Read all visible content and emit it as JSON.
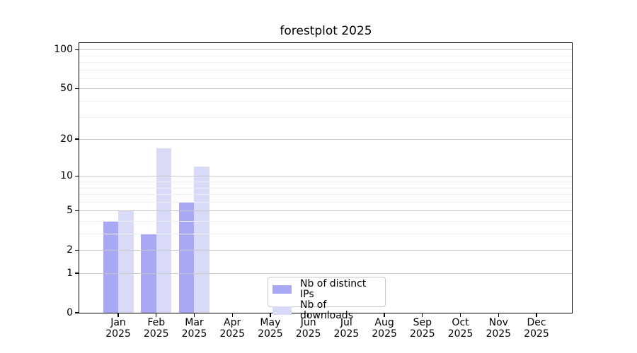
{
  "title": "forestplot 2025",
  "colors": {
    "bar_distinct_ips": "#a8a8f4",
    "bar_downloads": "#d9d9f8",
    "grid_major": "#c8c8c8",
    "grid_minor": "#f0f0f0",
    "spine": "#000000",
    "legend_border": "#c8c8c8",
    "background": "#ffffff",
    "text": "#000000"
  },
  "chart_data": {
    "type": "bar",
    "title": "forestplot 2025",
    "x_months": [
      "Jan",
      "Feb",
      "Mar",
      "Apr",
      "May",
      "Jun",
      "Jul",
      "Aug",
      "Sep",
      "Oct",
      "Nov",
      "Dec"
    ],
    "x_year": "2025",
    "series": [
      {
        "name": "Nb of distinct IPs",
        "color": "#a8a8f4",
        "values": [
          4,
          3,
          6,
          0,
          0,
          0,
          0,
          0,
          0,
          0,
          0,
          0
        ]
      },
      {
        "name": "Nb of downloads",
        "color": "#d9d9f8",
        "values": [
          5,
          17,
          12,
          0,
          0,
          0,
          0,
          0,
          0,
          0,
          0,
          0
        ]
      }
    ],
    "yscale": "log1p",
    "y_major_ticks": [
      100,
      50,
      20,
      10,
      5,
      2,
      1,
      0
    ],
    "y_minor_ticks": [
      90,
      80,
      70,
      60,
      40,
      30,
      9,
      8,
      7,
      6,
      4,
      3
    ],
    "ylim": [
      0,
      112
    ],
    "xlabel": "",
    "ylabel": "",
    "grid": true,
    "legend_position": "lower center"
  }
}
